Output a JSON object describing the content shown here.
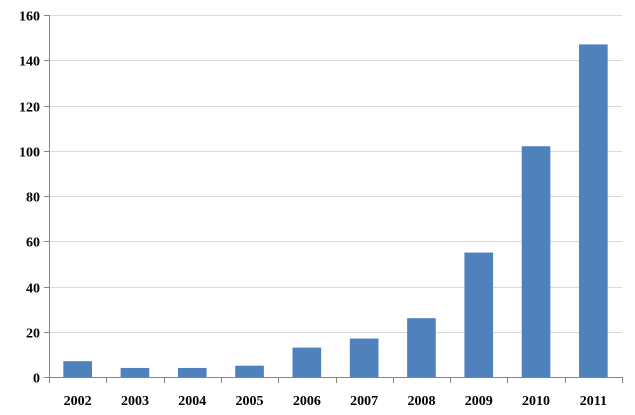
{
  "chart_data": {
    "type": "bar",
    "title": "",
    "xlabel": "",
    "ylabel": "",
    "categories": [
      "2002",
      "2003",
      "2004",
      "2005",
      "2006",
      "2007",
      "2008",
      "2009",
      "2010",
      "2011"
    ],
    "values": [
      7,
      4,
      4,
      5,
      13,
      17,
      26,
      55,
      102,
      147
    ],
    "ylim": [
      0,
      160
    ],
    "yticks": [
      0,
      20,
      40,
      60,
      80,
      100,
      120,
      140,
      160
    ],
    "grid": true,
    "legend": "none",
    "bar_color": "#4F81BD",
    "grid_color": "#D9D9D9",
    "axis_color": "#868686"
  }
}
